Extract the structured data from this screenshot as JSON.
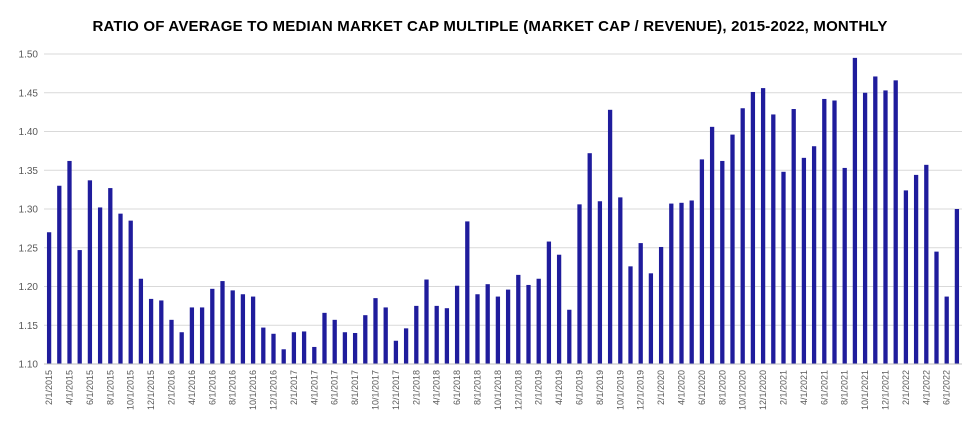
{
  "chart_data": {
    "type": "bar",
    "title": "RATIO OF AVERAGE TO MEDIAN MARKET CAP MULTIPLE (MARKET CAP / REVENUE), 2015-2022, MONTHLY",
    "xlabel": "",
    "ylabel": "",
    "ylim": [
      1.1,
      1.5
    ],
    "yticks": [
      "1.10",
      "1.15",
      "1.20",
      "1.25",
      "1.30",
      "1.35",
      "1.40",
      "1.45",
      "1.50"
    ],
    "grid": true,
    "legend": "none",
    "bar_color": "#1f1c9c",
    "categories": [
      "2/1/2015",
      "3/1/2015",
      "4/1/2015",
      "5/1/2015",
      "6/1/2015",
      "7/1/2015",
      "8/1/2015",
      "9/1/2015",
      "10/1/2015",
      "11/1/2015",
      "12/1/2015",
      "1/1/2016",
      "2/1/2016",
      "3/1/2016",
      "4/1/2016",
      "5/1/2016",
      "6/1/2016",
      "7/1/2016",
      "8/1/2016",
      "9/1/2016",
      "10/1/2016",
      "11/1/2016",
      "12/1/2016",
      "1/1/2017",
      "2/1/2017",
      "3/1/2017",
      "4/1/2017",
      "5/1/2017",
      "6/1/2017",
      "7/1/2017",
      "8/1/2017",
      "9/1/2017",
      "10/1/2017",
      "11/1/2017",
      "12/1/2017",
      "1/1/2018",
      "2/1/2018",
      "3/1/2018",
      "4/1/2018",
      "5/1/2018",
      "6/1/2018",
      "7/1/2018",
      "8/1/2018",
      "9/1/2018",
      "10/1/2018",
      "11/1/2018",
      "12/1/2018",
      "1/1/2019",
      "2/1/2019",
      "3/1/2019",
      "4/1/2019",
      "5/1/2019",
      "6/1/2019",
      "7/1/2019",
      "8/1/2019",
      "9/1/2019",
      "10/1/2019",
      "11/1/2019",
      "12/1/2019",
      "1/1/2020",
      "2/1/2020",
      "3/1/2020",
      "4/1/2020",
      "5/1/2020",
      "6/1/2020",
      "7/1/2020",
      "8/1/2020",
      "9/1/2020",
      "10/1/2020",
      "11/1/2020",
      "12/1/2020",
      "1/1/2021",
      "2/1/2021",
      "3/1/2021",
      "4/1/2021",
      "5/1/2021",
      "6/1/2021",
      "7/1/2021",
      "8/1/2021",
      "9/1/2021",
      "10/1/2021",
      "11/1/2021",
      "12/1/2021",
      "1/1/2022",
      "2/1/2022",
      "3/1/2022",
      "4/1/2022",
      "5/1/2022",
      "6/1/2022",
      "7/1/2022"
    ],
    "xtick_labels": [
      "2/1/2015",
      "4/1/2015",
      "6/1/2015",
      "8/1/2015",
      "10/1/2015",
      "12/1/2015",
      "2/1/2016",
      "4/1/2016",
      "6/1/2016",
      "8/1/2016",
      "10/1/2016",
      "12/1/2016",
      "2/1/2017",
      "4/1/2017",
      "6/1/2017",
      "8/1/2017",
      "10/1/2017",
      "12/1/2017",
      "2/1/2018",
      "4/1/2018",
      "6/1/2018",
      "8/1/2018",
      "10/1/2018",
      "12/1/2018",
      "2/1/2019",
      "4/1/2019",
      "6/1/2019",
      "8/1/2019",
      "10/1/2019",
      "12/1/2019",
      "2/1/2020",
      "4/1/2020",
      "6/1/2020",
      "8/1/2020",
      "10/1/2020",
      "12/1/2020",
      "2/1/2021",
      "4/1/2021",
      "6/1/2021",
      "8/1/2021",
      "10/1/2021",
      "12/1/2021",
      "2/1/2022",
      "4/1/2022",
      "6/1/2022"
    ],
    "values": [
      1.27,
      1.33,
      1.362,
      1.247,
      1.337,
      1.302,
      1.327,
      1.294,
      1.285,
      1.21,
      1.184,
      1.182,
      1.157,
      1.141,
      1.173,
      1.173,
      1.197,
      1.207,
      1.195,
      1.19,
      1.187,
      1.147,
      1.139,
      1.119,
      1.141,
      1.142,
      1.122,
      1.166,
      1.157,
      1.141,
      1.14,
      1.163,
      1.185,
      1.173,
      1.13,
      1.146,
      1.175,
      1.209,
      1.175,
      1.172,
      1.201,
      1.284,
      1.19,
      1.203,
      1.187,
      1.196,
      1.215,
      1.202,
      1.21,
      1.258,
      1.241,
      1.17,
      1.306,
      1.372,
      1.31,
      1.428,
      1.315,
      1.226,
      1.256,
      1.217,
      1.251,
      1.307,
      1.308,
      1.311,
      1.364,
      1.406,
      1.362,
      1.396,
      1.43,
      1.451,
      1.456,
      1.422,
      1.348,
      1.429,
      1.366,
      1.381,
      1.442,
      1.44,
      1.353,
      1.495,
      1.45,
      1.471,
      1.453,
      1.466,
      1.324,
      1.344,
      1.357,
      1.245,
      1.187,
      1.3
    ]
  }
}
